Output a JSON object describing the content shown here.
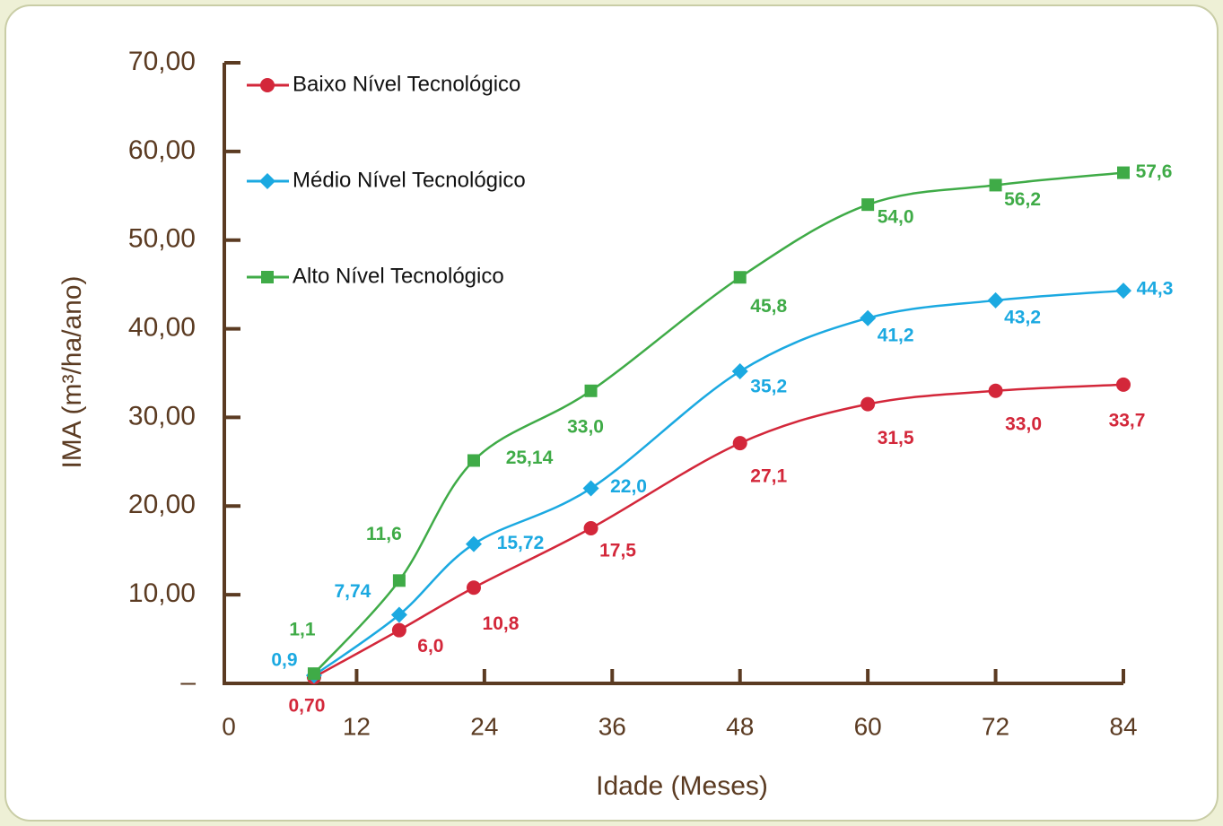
{
  "chart_data": {
    "type": "line",
    "x_label": "Idade (Meses)",
    "y_label": "IMA (m³/ha/ano)",
    "x": [
      8,
      16,
      23,
      34,
      48,
      60,
      72,
      84
    ],
    "xlim": [
      0,
      84
    ],
    "xticks": [
      0,
      12,
      24,
      36,
      48,
      60,
      72,
      84
    ],
    "ylim": [
      0,
      70
    ],
    "yticks": [
      {
        "value": 0,
        "label": "–"
      },
      {
        "value": 10,
        "label": "10,00"
      },
      {
        "value": 20,
        "label": "20,00"
      },
      {
        "value": 30,
        "label": "30,00"
      },
      {
        "value": 40,
        "label": "40,00"
      },
      {
        "value": 50,
        "label": "50,00"
      },
      {
        "value": 60,
        "label": "60,00"
      },
      {
        "value": 70,
        "label": "70,00"
      }
    ],
    "legend": "top-left",
    "series": [
      {
        "name": "Baixo Nível Tecnológico",
        "color": "#d3273a",
        "marker": "circle",
        "values": [
          0.7,
          6.0,
          10.8,
          17.5,
          27.1,
          31.5,
          33.0,
          33.7
        ],
        "value_labels": [
          "0,70",
          "6,0",
          "10,8",
          "17,5",
          "27,1",
          "31,5",
          "33,0",
          "33,7"
        ]
      },
      {
        "name": "Médio Nível Tecnológico",
        "color": "#1ba9e1",
        "marker": "diamond",
        "values": [
          0.9,
          7.74,
          15.72,
          22.0,
          35.2,
          41.2,
          43.2,
          44.3
        ],
        "value_labels": [
          "0,9",
          "7,74",
          "15,72",
          "22,0",
          "35,2",
          "41,2",
          "43,2",
          "44,3"
        ]
      },
      {
        "name": "Alto Nível Tecnológico",
        "color": "#3fab47",
        "marker": "square",
        "values": [
          1.1,
          11.6,
          25.14,
          33.0,
          45.8,
          54.0,
          56.2,
          57.6
        ],
        "value_labels": [
          "1,1",
          "11,6",
          "25,14",
          "33,0",
          "45,8",
          "54,0",
          "56,2",
          "57,6"
        ]
      }
    ]
  }
}
